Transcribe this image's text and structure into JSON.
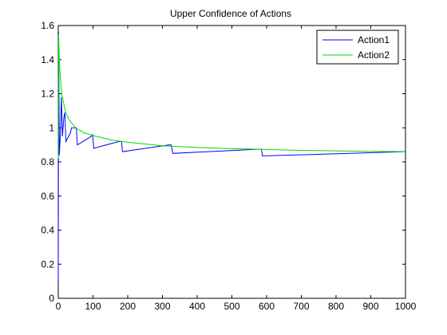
{
  "chart_data": {
    "type": "line",
    "title": "Upper Confidence of Actions",
    "xlabel": "",
    "ylabel": "",
    "xlim": [
      0,
      1000
    ],
    "ylim": [
      0,
      1.6
    ],
    "x_ticks": [
      "0",
      "100",
      "200",
      "300",
      "400",
      "500",
      "600",
      "700",
      "800",
      "900",
      "1000"
    ],
    "y_ticks": [
      "0",
      "0.2",
      "0.4",
      "0.6",
      "0.8",
      "1",
      "1.2",
      "1.4",
      "1.6"
    ],
    "grid": false,
    "legend": {
      "placement": "top-right",
      "entries": [
        "Action1",
        "Action2"
      ]
    },
    "series": [
      {
        "name": "Action1",
        "color": "#0000ff",
        "points": [
          [
            0,
            0.1
          ],
          [
            1,
            1.56
          ],
          [
            3,
            0.84
          ],
          [
            6,
            0.96
          ],
          [
            9,
            1.18
          ],
          [
            12,
            0.95
          ],
          [
            16,
            1.06
          ],
          [
            19,
            1.09
          ],
          [
            22,
            0.92
          ],
          [
            35,
            0.97
          ],
          [
            38,
            1.0
          ],
          [
            52,
            1.0
          ],
          [
            55,
            0.9
          ],
          [
            95,
            0.95
          ],
          [
            99,
            0.96
          ],
          [
            102,
            0.88
          ],
          [
            175,
            0.92
          ],
          [
            182,
            0.92
          ],
          [
            185,
            0.86
          ],
          [
            320,
            0.9
          ],
          [
            325,
            0.9
          ],
          [
            330,
            0.85
          ],
          [
            580,
            0.875
          ],
          [
            585,
            0.875
          ],
          [
            588,
            0.835
          ],
          [
            1000,
            0.86
          ]
        ]
      },
      {
        "name": "Action2",
        "color": "#00dd00",
        "points": [
          [
            0,
            0.82
          ],
          [
            1,
            1.55
          ],
          [
            3,
            1.4
          ],
          [
            6,
            1.3
          ],
          [
            10,
            1.2
          ],
          [
            20,
            1.1
          ],
          [
            30,
            1.05
          ],
          [
            50,
            1.0
          ],
          [
            75,
            0.97
          ],
          [
            100,
            0.955
          ],
          [
            150,
            0.93
          ],
          [
            200,
            0.915
          ],
          [
            250,
            0.905
          ],
          [
            300,
            0.895
          ],
          [
            400,
            0.885
          ],
          [
            500,
            0.878
          ],
          [
            600,
            0.873
          ],
          [
            700,
            0.868
          ],
          [
            800,
            0.865
          ],
          [
            900,
            0.862
          ],
          [
            1000,
            0.86
          ]
        ]
      }
    ]
  }
}
